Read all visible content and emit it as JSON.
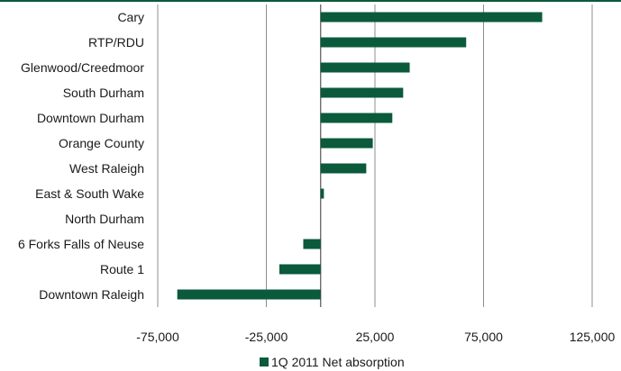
{
  "chart_data": {
    "type": "bar",
    "orientation": "horizontal",
    "categories": [
      "Cary",
      "RTP/RDU",
      "Glenwood/Creedmoor",
      "South Durham",
      "Downtown Durham",
      "Orange County",
      "West Raleigh",
      "East & South Wake",
      "North Durham",
      "6 Forks Falls of Neuse",
      "Route 1",
      "Downtown Raleigh"
    ],
    "series": [
      {
        "name": "1Q 2011 Net absorption",
        "values": [
          102000,
          67000,
          41000,
          38000,
          33000,
          24000,
          21000,
          1500,
          0,
          -8000,
          -19000,
          -66000
        ],
        "color": "#0b5a3c"
      }
    ],
    "xlim": [
      -75000,
      125000
    ],
    "xticks": [
      -75000,
      -25000,
      25000,
      75000,
      125000
    ],
    "xtick_labels": [
      "-75,000",
      "-25,000",
      "25,000",
      "75,000",
      "125,000"
    ],
    "grid": true,
    "legend": "bottom",
    "title": "",
    "xlabel": "",
    "ylabel": ""
  },
  "colors": {
    "bar": "#0b5a3c",
    "top_rule": "#0b5a3c",
    "grid": "#8c8c8c"
  }
}
